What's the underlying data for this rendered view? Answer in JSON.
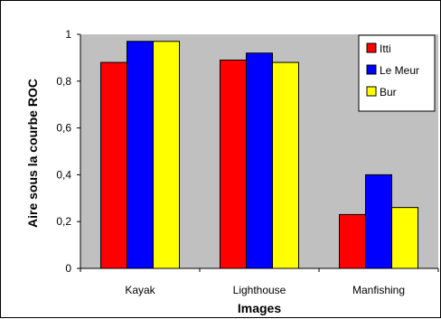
{
  "chart_data": {
    "type": "bar",
    "categories": [
      "Kayak",
      "Lighthouse",
      "Manfishing"
    ],
    "series": [
      {
        "name": "Itti",
        "color": "#ff0000",
        "values": [
          0.88,
          0.89,
          0.23
        ]
      },
      {
        "name": "Le Meur",
        "color": "#0000ff",
        "values": [
          0.97,
          0.92,
          0.4
        ]
      },
      {
        "name": "Bur",
        "color": "#ffff00",
        "values": [
          0.97,
          0.88,
          0.26
        ]
      }
    ],
    "title": "",
    "xlabel": "Images",
    "ylabel": "Aire sous la courbe ROC",
    "ylim": [
      0,
      1
    ],
    "yticks": [
      0,
      0.2,
      0.4,
      0.6,
      0.8,
      1
    ],
    "ytick_labels": [
      "0",
      "0,2",
      "0,4",
      "0,6",
      "0,8",
      "1"
    ],
    "grid": false,
    "plot_background": "#c0c0c0",
    "legend_position": "top-right"
  }
}
